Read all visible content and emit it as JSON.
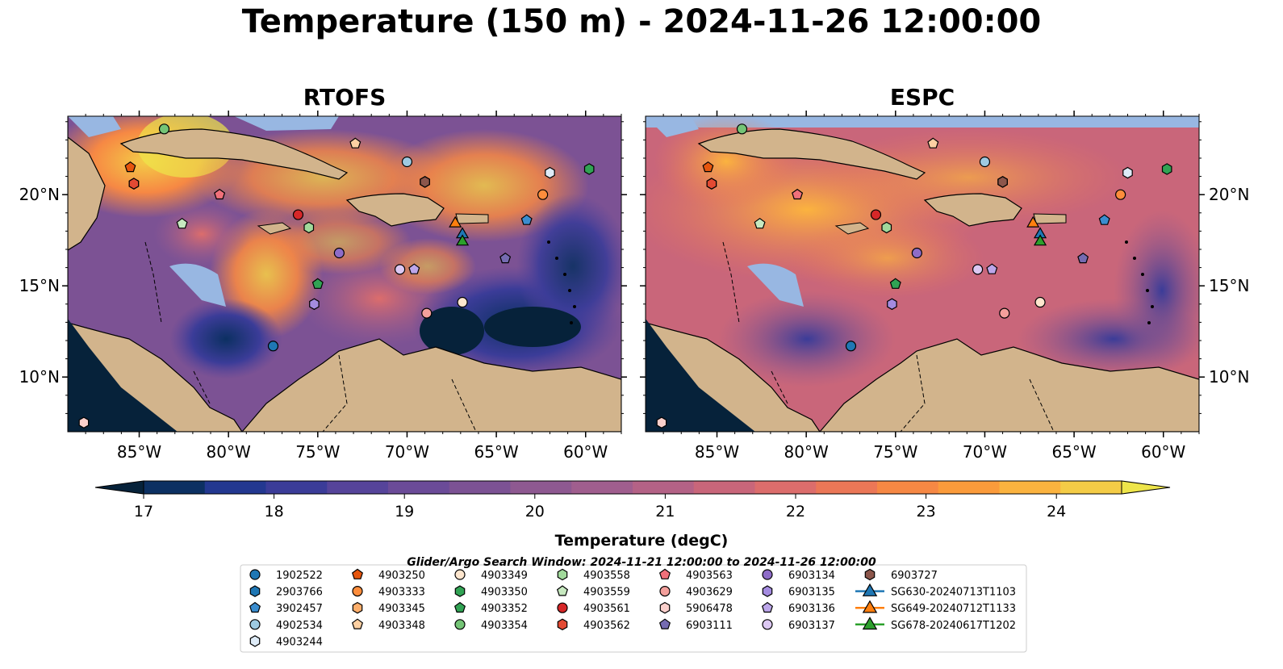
{
  "figure": {
    "title": "Temperature (150 m) - 2024-11-26 12:00:00",
    "panels": [
      {
        "title": "RTOFS"
      },
      {
        "title": "ESPC"
      }
    ],
    "lon_ticks": [
      "85°W",
      "80°W",
      "75°W",
      "70°W",
      "65°W",
      "60°W"
    ],
    "lat_ticks": [
      "20°N",
      "15°N",
      "10°N"
    ],
    "colormap_note": "thermal (dark navy → purple → orange → yellow)",
    "colors": {
      "land": "#d2b48c",
      "shallow_water": "#98b7e2",
      "coast": "#000000"
    }
  },
  "colorbar": {
    "label": "Temperature (degC)",
    "ticks": [
      "17",
      "18",
      "19",
      "20",
      "21",
      "22",
      "23",
      "24"
    ],
    "min": 17,
    "max": 24.5,
    "extend": "both",
    "colors": [
      "#06223a",
      "#0c3062",
      "#233890",
      "#3b3c98",
      "#56449a",
      "#6b4b98",
      "#7c5294",
      "#8e5991",
      "#a05e8e",
      "#b46286",
      "#c9667a",
      "#dc6d6c",
      "#eb7757",
      "#f68844",
      "#fb9b3b",
      "#fbb33f",
      "#f4cc46",
      "#eee54a"
    ]
  },
  "legend": {
    "title": "Glider/Argo Search Window: 2024-11-21 12:00:00 to 2024-11-26 12:00:00",
    "columns": [
      [
        {
          "label": "1902522",
          "marker": "circle",
          "color": "#1f77b4"
        },
        {
          "label": "2903766",
          "marker": "hexagon",
          "color": "#1f77b4"
        },
        {
          "label": "3902457",
          "marker": "pentagon",
          "color": "#3b8dcf"
        },
        {
          "label": "4902534",
          "marker": "circle",
          "color": "#9ecae1"
        },
        {
          "label": "4903244",
          "marker": "hexagon",
          "color": "#deebf7"
        }
      ],
      [
        {
          "label": "4903250",
          "marker": "pentagon",
          "color": "#e6550d"
        },
        {
          "label": "4903333",
          "marker": "circle",
          "color": "#fd8d3c"
        },
        {
          "label": "4903345",
          "marker": "hexagon",
          "color": "#fdae6b"
        },
        {
          "label": "4903348",
          "marker": "pentagon",
          "color": "#fdd0a2"
        }
      ],
      [
        {
          "label": "4903349",
          "marker": "circle",
          "color": "#fee6ce"
        },
        {
          "label": "4903350",
          "marker": "hexagon",
          "color": "#31a354"
        },
        {
          "label": "4903352",
          "marker": "pentagon",
          "color": "#31a354"
        },
        {
          "label": "4903354",
          "marker": "circle",
          "color": "#74c476"
        }
      ],
      [
        {
          "label": "4903558",
          "marker": "hexagon",
          "color": "#a1d99b"
        },
        {
          "label": "4903559",
          "marker": "pentagon",
          "color": "#c7e9c0"
        },
        {
          "label": "4903561",
          "marker": "circle",
          "color": "#d62728"
        },
        {
          "label": "4903562",
          "marker": "hexagon",
          "color": "#e34a33"
        }
      ],
      [
        {
          "label": "4903563",
          "marker": "pentagon",
          "color": "#f0707a"
        },
        {
          "label": "4903629",
          "marker": "circle",
          "color": "#f4a09c"
        },
        {
          "label": "5906478",
          "marker": "hexagon",
          "color": "#fbd0cc"
        },
        {
          "label": "6903111",
          "marker": "pentagon",
          "color": "#756bb1"
        }
      ],
      [
        {
          "label": "6903134",
          "marker": "circle",
          "color": "#8e6cc8"
        },
        {
          "label": "6903135",
          "marker": "hexagon",
          "color": "#a48be0"
        },
        {
          "label": "6903136",
          "marker": "pentagon",
          "color": "#bca6ea"
        },
        {
          "label": "6903137",
          "marker": "circle",
          "color": "#dcc8f2"
        }
      ],
      [
        {
          "label": "6903727",
          "marker": "hexagon",
          "color": "#8c564b"
        },
        {
          "label": "SG630-20240713T1103",
          "marker": "triangle",
          "color": "#1f77b4"
        },
        {
          "label": "SG649-20240712T1133",
          "marker": "triangle",
          "color": "#ff7f0e"
        },
        {
          "label": "SG678-20240617T1202",
          "marker": "triangle",
          "color": "#2ca02c"
        }
      ]
    ]
  },
  "markers": [
    {
      "id": "1902522",
      "lon": -77.5,
      "lat": 11.7
    },
    {
      "id": "2903766",
      "lon": -69.0,
      "lat": 20.7
    },
    {
      "id": "3902457",
      "lon": -63.3,
      "lat": 18.6
    },
    {
      "id": "4902534",
      "lon": -70.0,
      "lat": 21.8
    },
    {
      "id": "4903244",
      "lon": -62.0,
      "lat": 21.2
    },
    {
      "id": "4903250",
      "lon": -85.5,
      "lat": 21.5
    },
    {
      "id": "4903333",
      "lon": -62.4,
      "lat": 20.0
    },
    {
      "id": "4903345",
      "lon": -85.3,
      "lat": 20.6
    },
    {
      "id": "4903348",
      "lon": -72.9,
      "lat": 22.8
    },
    {
      "id": "4903349",
      "lon": -66.9,
      "lat": 14.1
    },
    {
      "id": "4903350",
      "lon": -59.8,
      "lat": 21.4
    },
    {
      "id": "4903352",
      "lon": -75.0,
      "lat": 15.1
    },
    {
      "id": "4903354",
      "lon": -83.6,
      "lat": 23.6
    },
    {
      "id": "4903558",
      "lon": -75.5,
      "lat": 18.2
    },
    {
      "id": "4903559",
      "lon": -82.6,
      "lat": 18.4
    },
    {
      "id": "4903561",
      "lon": -76.1,
      "lat": 18.9
    },
    {
      "id": "4903562",
      "lon": -85.3,
      "lat": 20.6
    },
    {
      "id": "4903563",
      "lon": -80.5,
      "lat": 20.0
    },
    {
      "id": "4903629",
      "lon": -68.9,
      "lat": 13.5
    },
    {
      "id": "5906478",
      "lon": -88.1,
      "lat": 7.5
    },
    {
      "id": "6903111",
      "lon": -64.5,
      "lat": 16.5
    },
    {
      "id": "6903134",
      "lon": -73.8,
      "lat": 16.8
    },
    {
      "id": "6903135",
      "lon": -75.2,
      "lat": 14.0
    },
    {
      "id": "6903136",
      "lon": -69.6,
      "lat": 15.9
    },
    {
      "id": "6903137",
      "lon": -70.4,
      "lat": 15.9
    },
    {
      "id": "6903727",
      "lon": -69.0,
      "lat": 20.7
    },
    {
      "id": "SG630-20240713T1103",
      "lon": -66.9,
      "lat": 17.9
    },
    {
      "id": "SG649-20240712T1133",
      "lon": -67.3,
      "lat": 18.5
    },
    {
      "id": "SG678-20240617T1202",
      "lon": -66.9,
      "lat": 17.5
    }
  ]
}
